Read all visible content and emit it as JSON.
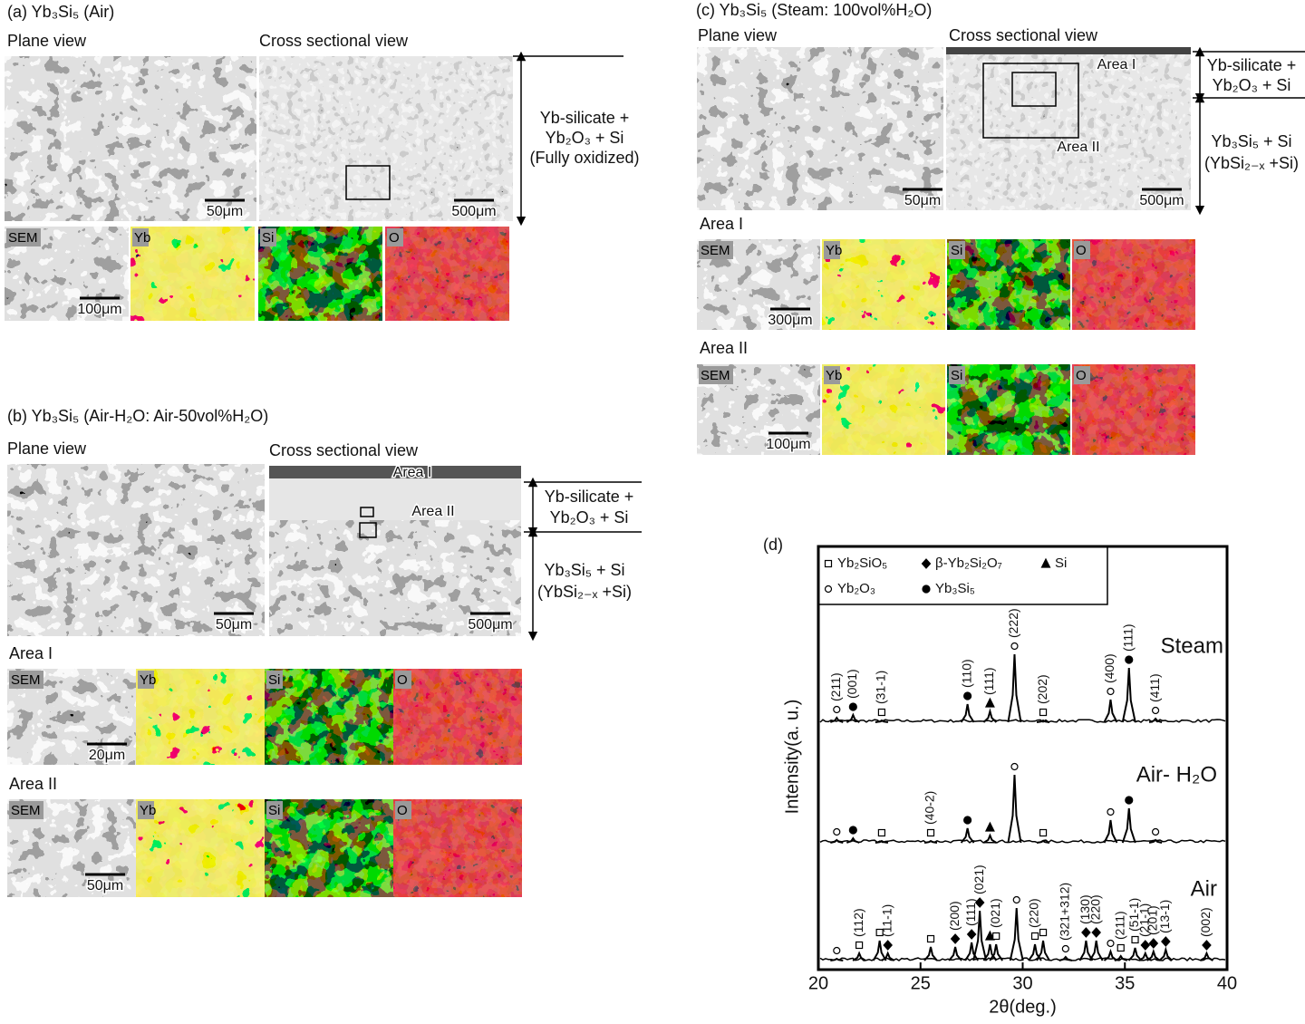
{
  "panel_a": {
    "title": "(a) Yb₃Si₅ (Air)",
    "plane_view": "Plane view",
    "cross_view": "Cross sectional view",
    "plane_scale": "50μm",
    "cross_scale": "500μm",
    "layer": [
      "Yb-silicate +",
      "Yb₂O₃ + Si",
      "(Fully oxidized)"
    ],
    "maps": [
      "SEM",
      "Yb",
      "Si",
      "O"
    ],
    "map_scale": "100μm"
  },
  "panel_b": {
    "title": "(b) Yb₃Si₅   (Air-H₂O: Air-50vol%H₂O)",
    "plane_view": "Plane view",
    "cross_view": "Cross sectional view",
    "plane_scale": "50μm",
    "cross_scale": "500μm",
    "image_areas": [
      "Area I",
      "Area II"
    ],
    "layers": [
      [
        "Yb-silicate +",
        "Yb₂O₃ + Si"
      ],
      [
        "Yb₃Si₅  + Si",
        "(YbSi₂₋ₓ +Si)"
      ]
    ],
    "areas": [
      {
        "title": "Area I",
        "maps": [
          "SEM",
          "Yb",
          "Si",
          "O"
        ],
        "scale": "20μm"
      },
      {
        "title": "Area II",
        "maps": [
          "SEM",
          "Yb",
          "Si",
          "O"
        ],
        "scale": "50μm"
      }
    ]
  },
  "panel_c": {
    "title": "(c) Yb₃Si₅ (Steam: 100vol%H₂O)",
    "plane_view": "Plane view",
    "cross_view": "Cross sectional view",
    "plane_scale": "50μm",
    "cross_scale": "500μm",
    "image_areas": [
      "Area I",
      "Area II"
    ],
    "layers": [
      [
        "Yb-silicate +",
        "Yb₂O₃ + Si"
      ],
      [
        "Yb₃Si₅  + Si",
        "(YbSi₂₋ₓ +Si)"
      ]
    ],
    "areas": [
      {
        "title": "Area I",
        "maps": [
          "SEM",
          "Yb",
          "Si",
          "O"
        ],
        "scale": "300μm"
      },
      {
        "title": "Area II",
        "maps": [
          "SEM",
          "Yb",
          "Si",
          "O"
        ],
        "scale": "100μm"
      }
    ]
  },
  "chart_data": {
    "type": "xrd",
    "label": "(d)",
    "xlabel": "2θ(deg.)",
    "ylabel": "Intensity(a. u.)",
    "xlim": [
      20,
      40
    ],
    "xticks": [
      20,
      25,
      30,
      35,
      40
    ],
    "legend": [
      {
        "marker": "square",
        "label": "Yb₂SiO₅"
      },
      {
        "marker": "diamond",
        "label": "β-Yb₂Si₂O₇"
      },
      {
        "marker": "triangle",
        "label": "Si"
      },
      {
        "marker": "circle",
        "label": "Yb₂O₃"
      },
      {
        "marker": "dot",
        "label": "Yb₃Si₅"
      }
    ],
    "series": [
      {
        "name": "Steam",
        "peaks": [
          {
            "x": 20.9,
            "h": 5,
            "marker": "circle",
            "label": "(211)"
          },
          {
            "x": 21.7,
            "h": 8,
            "marker": "dot",
            "label": "(001)"
          },
          {
            "x": 23.1,
            "h": 2,
            "marker": "square",
            "label": "(31-1)"
          },
          {
            "x": 27.3,
            "h": 20,
            "marker": "dot",
            "label": "(110)"
          },
          {
            "x": 28.4,
            "h": 12,
            "marker": "triangle",
            "label": "(111)"
          },
          {
            "x": 29.6,
            "h": 75,
            "marker": "circle",
            "label": "(222)"
          },
          {
            "x": 31.0,
            "h": 2,
            "marker": "square",
            "label": "(202)"
          },
          {
            "x": 34.3,
            "h": 25,
            "marker": "circle",
            "label": "(400)"
          },
          {
            "x": 35.2,
            "h": 60,
            "marker": "dot",
            "label": "(111)"
          },
          {
            "x": 36.5,
            "h": 4,
            "marker": "circle",
            "label": "(411)"
          }
        ]
      },
      {
        "name": "Air- H₂O",
        "peaks": [
          {
            "x": 20.9,
            "h": 3,
            "marker": "circle"
          },
          {
            "x": 21.7,
            "h": 5,
            "marker": "dot"
          },
          {
            "x": 23.1,
            "h": 2,
            "marker": "square"
          },
          {
            "x": 25.5,
            "h": 2,
            "marker": "square",
            "label": "(40-2)"
          },
          {
            "x": 27.3,
            "h": 16,
            "marker": "dot"
          },
          {
            "x": 28.4,
            "h": 8,
            "marker": "triangle"
          },
          {
            "x": 29.6,
            "h": 75,
            "marker": "circle"
          },
          {
            "x": 31.0,
            "h": 2,
            "marker": "square"
          },
          {
            "x": 34.3,
            "h": 25,
            "marker": "circle"
          },
          {
            "x": 35.2,
            "h": 38,
            "marker": "dot"
          },
          {
            "x": 36.5,
            "h": 3,
            "marker": "circle"
          }
        ]
      },
      {
        "name": "Air",
        "peaks": [
          {
            "x": 20.9,
            "h": 2,
            "marker": "circle"
          },
          {
            "x": 22.0,
            "h": 8,
            "marker": "square",
            "label": "(112)"
          },
          {
            "x": 23.0,
            "h": 22,
            "marker": "square"
          },
          {
            "x": 23.4,
            "h": 8,
            "marker": "diamond",
            "label": "(11-1)"
          },
          {
            "x": 25.5,
            "h": 15,
            "marker": "square"
          },
          {
            "x": 26.7,
            "h": 15,
            "marker": "diamond",
            "label": "(200)"
          },
          {
            "x": 27.5,
            "h": 20,
            "marker": "diamond",
            "label": "(111)"
          },
          {
            "x": 27.9,
            "h": 55,
            "marker": "diamond",
            "label": "(021)"
          },
          {
            "x": 28.4,
            "h": 18,
            "marker": "triangle"
          },
          {
            "x": 28.7,
            "h": 18,
            "marker": "square",
            "label": "(021)"
          },
          {
            "x": 29.7,
            "h": 58,
            "marker": "circle"
          },
          {
            "x": 30.6,
            "h": 18,
            "marker": "square",
            "label": "(220)"
          },
          {
            "x": 31.0,
            "h": 22,
            "marker": "square"
          },
          {
            "x": 32.1,
            "h": 4,
            "marker": "circle",
            "label": "(321+312)"
          },
          {
            "x": 33.1,
            "h": 22,
            "marker": "diamond",
            "label": "(130)"
          },
          {
            "x": 33.6,
            "h": 22,
            "marker": "diamond",
            "label": "(220)"
          },
          {
            "x": 34.3,
            "h": 10,
            "marker": "circle"
          },
          {
            "x": 34.8,
            "h": 5,
            "marker": "square",
            "label": "(211)"
          },
          {
            "x": 35.5,
            "h": 14,
            "marker": "square",
            "label": "(51-1)"
          },
          {
            "x": 36.0,
            "h": 8,
            "marker": "diamond",
            "label": "(21-1)"
          },
          {
            "x": 36.4,
            "h": 10,
            "marker": "diamond",
            "label": "(201)"
          },
          {
            "x": 37.0,
            "h": 12,
            "marker": "diamond",
            "label": "(13-1)"
          },
          {
            "x": 39.0,
            "h": 8,
            "marker": "diamond",
            "label": "(002)"
          }
        ]
      }
    ]
  }
}
